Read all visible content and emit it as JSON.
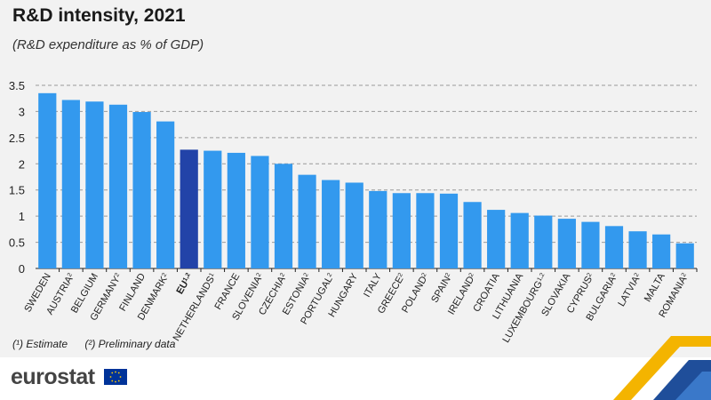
{
  "header": {
    "title": "R&D intensity, 2021",
    "subtitle": "(R&D expenditure as % of GDP)"
  },
  "footnotes": {
    "estimate": "(¹) Estimate",
    "preliminary": "(²) Preliminary data"
  },
  "branding": {
    "logo": "eurostat"
  },
  "colors": {
    "bar": "#3399ee",
    "bar_highlight": "#2243a8",
    "grid": "#9a9a9a",
    "panel": "#f2f2f2"
  },
  "chart_data": {
    "type": "bar",
    "title": "R&D intensity, 2021",
    "subtitle": "(R&D expenditure as % of GDP)",
    "xlabel": "",
    "ylabel": "",
    "ylim": [
      0,
      3.5
    ],
    "yticks": [
      "0",
      "0.5",
      "1",
      "1.5",
      "2",
      "2.5",
      "3",
      "3.5"
    ],
    "grid": true,
    "categories": [
      "SWEDEN",
      "AUSTRIA",
      "BELGIUM",
      "GERMANY",
      "FINLAND",
      "DENMARK",
      "EU",
      "NETHERLANDS",
      "FRANCE",
      "SLOVENIA",
      "CZECHIA",
      "ESTONIA",
      "PORTUGAL",
      "HUNGARY",
      "ITALY",
      "GREECE",
      "POLAND",
      "SPAIN",
      "IRELAND",
      "CROATIA",
      "LITHUANIA",
      "LUXEMBOURG",
      "SLOVAKIA",
      "CYPRUS",
      "BULGARIA",
      "LATVIA",
      "MALTA",
      "ROMANIA"
    ],
    "notes": [
      "",
      "2",
      "",
      "2",
      "",
      "2",
      "1,2",
      "1",
      "",
      "2",
      "2",
      "2",
      "2",
      "",
      "",
      "2",
      "2",
      "2",
      "2",
      "",
      "",
      "1,2",
      "",
      "2",
      "2",
      "2",
      "",
      "2"
    ],
    "values": [
      3.35,
      3.22,
      3.19,
      3.13,
      2.99,
      2.81,
      2.27,
      2.25,
      2.21,
      2.15,
      2.0,
      1.79,
      1.69,
      1.64,
      1.48,
      1.44,
      1.44,
      1.43,
      1.27,
      1.12,
      1.06,
      1.01,
      0.95,
      0.89,
      0.81,
      0.71,
      0.65,
      0.48
    ],
    "highlight": "EU"
  }
}
